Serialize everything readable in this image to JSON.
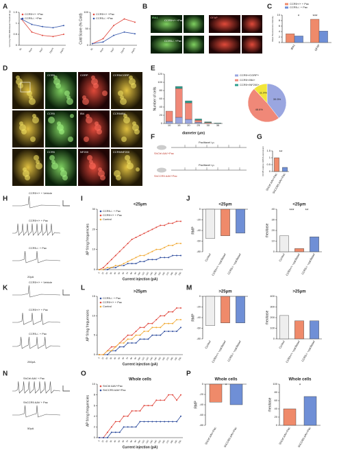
{
  "letters": [
    "A",
    "B",
    "C",
    "D",
    "E",
    "F",
    "G",
    "H",
    "I",
    "J",
    "K",
    "L",
    "M",
    "N",
    "O",
    "P"
  ],
  "image_labels": {
    "B": [
      "CCR5+/+ +Pac",
      "CCR5-/- +Pac",
      "IBA1",
      "GFAP"
    ],
    "D": [
      [
        "CCR5",
        "CGRP",
        "CCR5/CGRP"
      ],
      [
        "CCR5",
        "IB4",
        "CCR5/IB4"
      ],
      [
        "CCR5",
        "NF200",
        "CCR5/NF200"
      ]
    ]
  },
  "traces": {
    "H": [
      "CCR5+/+ + Vehicle",
      "CCR5+/+ + Pac",
      "CCR5-/- + Pac",
      "20pA"
    ],
    "K": [
      "CCR5+/+ + Vehicle",
      "CCR5+/+ + Pac",
      "CCR5-/- + Pac",
      "250pA"
    ],
    "N": [
      "ShCtrl AAV + Pac",
      "ShCCR5 AAV + Pac",
      "50pA"
    ]
  },
  "schematic": [
    "ShCtrl AAV+Pac",
    "ShCCR5 AAV+Pac",
    "Paclitaxel i.p.",
    "Paclitaxel i.p."
  ],
  "charts": [
    {
      "type": "line",
      "ylabel": "Von Frey 50% Withdrawal Threshold (g)",
      "categories": [
        "BL",
        "Day1",
        "Day7",
        "Day14",
        "Day21"
      ],
      "ylim": [
        0,
        1.5
      ],
      "yticks": [
        0,
        0.5,
        1,
        1.5
      ],
      "series": [
        {
          "name": "CCR5+/+ +Pac",
          "color": "#e0463c",
          "values": [
            1.2,
            0.6,
            0.45,
            0.4,
            0.5
          ]
        },
        {
          "name": "CCR5-/- +Pac",
          "color": "#3355aa",
          "values": [
            1.2,
            0.95,
            0.85,
            0.8,
            0.9
          ]
        }
      ]
    },
    {
      "type": "line",
      "ylabel": "Cold Score (% Cold)",
      "categories": [
        "BL",
        "Day1",
        "Day7",
        "Day14",
        "Day21"
      ],
      "ylim": [
        0,
        100
      ],
      "yticks": [
        0,
        50,
        100
      ],
      "series": [
        {
          "name": "CCR5+/+ +Pac",
          "color": "#e0463c",
          "values": [
            5,
            20,
            60,
            80,
            70
          ]
        },
        {
          "name": "CCR5-/- +Pac",
          "color": "#3355aa",
          "values": [
            5,
            10,
            30,
            40,
            35
          ]
        }
      ]
    },
    {
      "type": "bar",
      "ylabel": "Mean fluorescence intensity",
      "categories": [
        "IBA1",
        "GFAP"
      ],
      "ylim": [
        0,
        10
      ],
      "yticks": [
        0,
        2,
        4,
        6,
        8,
        10
      ],
      "annotations": [
        "*",
        "***"
      ],
      "series": [
        {
          "name": "CCR5+/+ + Pac",
          "color": "#ef8a6a",
          "values": [
            3.2,
            8.5
          ]
        },
        {
          "name": "CCR5-/- + Pac",
          "color": "#6f8fd6",
          "values": [
            2.4,
            4.2
          ]
        }
      ]
    },
    {
      "type": "bar",
      "stacked": true,
      "ylabel": "Number of cells",
      "xlabel": "diameter (μm)",
      "categories": [
        "10",
        "15",
        "20",
        "25",
        "30",
        "35"
      ],
      "ylim": [
        0,
        120
      ],
      "yticks": [
        0,
        20,
        40,
        60,
        80,
        100,
        120
      ],
      "series": [
        {
          "name": "CCR5+/CGRP+",
          "color": "#9aa6e0",
          "values": [
            5,
            15,
            10,
            3,
            0,
            0
          ]
        },
        {
          "name": "CCR5+/IB4+",
          "color": "#f08878",
          "values": [
            25,
            70,
            40,
            5,
            2,
            0
          ]
        },
        {
          "name": "CCR5+/NF200+",
          "color": "#2f9f8f",
          "values": [
            0,
            5,
            5,
            3,
            2,
            1
          ]
        }
      ]
    },
    {
      "type": "pie",
      "values": [
        39.5,
        48.6,
        11.9
      ],
      "value_labels": [
        "39.5%",
        "48.6%",
        "11.9%"
      ],
      "colors": [
        "#9aa6e0",
        "#f08878",
        "#f2e63a"
      ]
    },
    {
      "type": "bar",
      "ylabel": "CCR5 relative mRNA expression",
      "categories": [
        "ShCtrl AAV+Pac",
        "ShCCR5 AAV+Pac"
      ],
      "ylim": [
        0,
        1.5
      ],
      "yticks": [
        0,
        0.5,
        1,
        1.5
      ],
      "annotations": [
        "**"
      ],
      "values": [
        1,
        0.3
      ],
      "colors": [
        "#ef8a6a",
        "#6f8fd6"
      ]
    },
    {
      "type": "line",
      "title": "<25μm",
      "ylabel": "AP firing frequencies",
      "xlabel": "Current injection (pA)",
      "ylim": [
        0,
        30
      ],
      "yticks": [
        0,
        10,
        20,
        30
      ],
      "categories": [
        "0",
        "10",
        "20",
        "30",
        "40",
        "50",
        "60",
        "70",
        "80",
        "90",
        "100",
        "110",
        "120",
        "130",
        "140",
        "150",
        "160",
        "170",
        "180",
        "190",
        "200"
      ],
      "series": [
        {
          "name": "CCR5-/- + Pac",
          "color": "#2b4a9c",
          "values": [
            0,
            0,
            0,
            1,
            1,
            2,
            2,
            3,
            3,
            3,
            4,
            4,
            5,
            5,
            5,
            6,
            6,
            6,
            7,
            7,
            7
          ]
        },
        {
          "name": "CCR5+/+ + Pac",
          "color": "#e0463c",
          "values": [
            0,
            1,
            3,
            5,
            7,
            9,
            11,
            13,
            15,
            16,
            17,
            18,
            19,
            20,
            21,
            22,
            22,
            23,
            23,
            24,
            24
          ]
        },
        {
          "name": "Control",
          "color": "#f0a830",
          "values": [
            0,
            0,
            1,
            1,
            2,
            2,
            3,
            4,
            5,
            6,
            7,
            7,
            8,
            9,
            10,
            10,
            11,
            12,
            12,
            13,
            13
          ]
        }
      ]
    },
    {
      "type": "bar",
      "title": "<25μm",
      "ylabel": "RMP",
      "categories": [
        "Control",
        "CCR5+/+ +paclitaxel",
        "CCR5-/- +paclitaxel"
      ],
      "ylim": [
        -80,
        0
      ],
      "yticks": [
        -80,
        -60,
        -40,
        -20,
        0
      ],
      "values": [
        -55,
        -50,
        -45
      ],
      "colors": [
        "#eeeeee",
        "#ef8a6a",
        "#6f8fd6"
      ]
    },
    {
      "type": "bar",
      "title": "<25μm",
      "ylabel": "rheobase",
      "categories": [
        "Control",
        "CCR5+/+ +paclitaxel",
        "CCR5-/- +paclitaxel"
      ],
      "ylim": [
        0,
        40
      ],
      "yticks": [
        0,
        10,
        20,
        30,
        40
      ],
      "annotations": [
        "***",
        "**"
      ],
      "values": [
        15,
        3,
        14
      ],
      "colors": [
        "#eeeeee",
        "#ef8a6a",
        "#6f8fd6"
      ]
    },
    {
      "type": "line",
      "title": ">25μm",
      "ylabel": "AP firing frequencies",
      "xlabel": "Current injection (pA)",
      "ylim": [
        0,
        15
      ],
      "yticks": [
        0,
        5,
        10,
        15
      ],
      "categories": [
        "0",
        "10",
        "20",
        "30",
        "40",
        "50",
        "60",
        "70",
        "80",
        "90",
        "100",
        "110",
        "120",
        "130",
        "140",
        "150",
        "160",
        "170",
        "180",
        "190",
        "200"
      ],
      "series": [
        {
          "name": "CCR5-/- + Pac",
          "color": "#2b4a9c",
          "values": [
            0,
            0,
            0,
            1,
            1,
            2,
            2,
            3,
            3,
            3,
            4,
            4,
            4,
            5,
            5,
            5,
            6,
            6,
            6,
            6,
            7
          ]
        },
        {
          "name": "CCR5+/+ + Pac",
          "color": "#e0463c",
          "values": [
            0,
            0,
            1,
            2,
            2,
            3,
            4,
            5,
            5,
            6,
            7,
            7,
            8,
            8,
            9,
            10,
            10,
            11,
            11,
            12,
            12
          ]
        },
        {
          "name": "Control",
          "color": "#f0a830",
          "values": [
            0,
            0,
            1,
            1,
            2,
            3,
            3,
            4,
            4,
            5,
            5,
            6,
            6,
            7,
            7,
            7,
            8,
            8,
            8,
            9,
            9
          ]
        }
      ]
    },
    {
      "type": "bar",
      "title": ">25μm",
      "ylabel": "RMP",
      "categories": [
        "Control",
        "CCR5+/+ +paclitaxel",
        "CCR5-/- +paclitaxel"
      ],
      "ylim": [
        -80,
        0
      ],
      "yticks": [
        -80,
        -60,
        -40,
        -20,
        0
      ],
      "values": [
        -55,
        -50,
        -50
      ],
      "colors": [
        "#eeeeee",
        "#ef8a6a",
        "#6f8fd6"
      ]
    },
    {
      "type": "bar",
      "title": ">25μm",
      "ylabel": "rheobase",
      "categories": [
        "Control",
        "CCR5+/+ +paclitaxel",
        "CCR5-/- +paclitaxel"
      ],
      "ylim": [
        0,
        400
      ],
      "yticks": [
        0,
        100,
        200,
        300,
        400
      ],
      "values": [
        220,
        170,
        170
      ],
      "colors": [
        "#eeeeee",
        "#ef8a6a",
        "#6f8fd6"
      ]
    },
    {
      "type": "line",
      "title": "Whole cells",
      "ylabel": "AP firing frequencies",
      "xlabel": "Current injection (pA)",
      "ylim": [
        0,
        10
      ],
      "yticks": [
        0,
        2,
        4,
        6,
        8,
        10
      ],
      "categories": [
        "0",
        "10",
        "20",
        "30",
        "40",
        "50",
        "60",
        "70",
        "80",
        "90",
        "100",
        "110",
        "120",
        "130",
        "140",
        "150",
        "160",
        "170",
        "180",
        "190",
        "200"
      ],
      "series": [
        {
          "name": "ShCtrl AAV+Pac",
          "color": "#e0463c",
          "values": [
            0,
            0,
            1,
            2,
            3,
            3,
            4,
            4,
            5,
            5,
            5,
            6,
            6,
            6,
            7,
            7,
            7,
            8,
            8,
            7,
            8
          ]
        },
        {
          "name": "ShCCR5 AAV+Pac",
          "color": "#2b4a9c",
          "values": [
            0,
            0,
            0,
            1,
            1,
            1,
            2,
            2,
            2,
            2,
            3,
            3,
            3,
            3,
            3,
            3,
            3,
            3,
            3,
            3,
            4
          ]
        }
      ]
    },
    {
      "type": "bar",
      "title": "Whole cells",
      "ylabel": "RMP",
      "categories": [
        "ShCtrl AAV+Pac",
        "ShCCR5 AAV+Pac"
      ],
      "ylim": [
        -80,
        0
      ],
      "yticks": [
        -80,
        -60,
        -40,
        -20,
        0
      ],
      "annotations": [
        "*"
      ],
      "values": [
        -35,
        -40
      ],
      "colors": [
        "#ef8a6a",
        "#6f8fd6"
      ]
    },
    {
      "type": "bar",
      "title": "Whole cells",
      "ylabel": "rheobase",
      "categories": [
        "ShCtrl AAV+Pac",
        "ShCCR5 AAV+Pac"
      ],
      "ylim": [
        0,
        100
      ],
      "yticks": [
        0,
        20,
        40,
        60,
        80,
        100
      ],
      "annotations": [
        "*"
      ],
      "values": [
        40,
        70
      ],
      "colors": [
        "#ef8a6a",
        "#6f8fd6"
      ]
    }
  ]
}
